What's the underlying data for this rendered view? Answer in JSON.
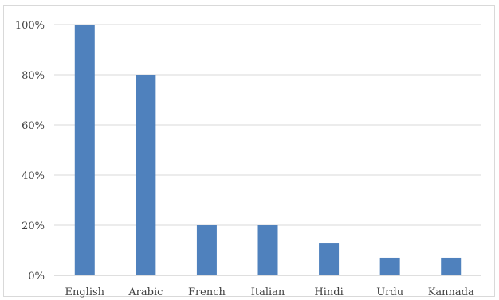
{
  "chart_data": {
    "type": "bar",
    "title": "",
    "xlabel": "",
    "ylabel": "",
    "categories": [
      "English",
      "Arabic",
      "French",
      "Italian",
      "Hindi",
      "Urdu",
      "Kannada"
    ],
    "values": [
      100,
      80,
      20,
      20,
      13,
      7,
      7
    ],
    "ylim": [
      0,
      100
    ],
    "yticks": [
      "0%",
      "20%",
      "40%",
      "60%",
      "80%",
      "100%"
    ],
    "grid": true,
    "legend": "none",
    "colors": {
      "bar": "#4f81bd",
      "grid": "#d9d9d9",
      "text": "#404040"
    }
  }
}
